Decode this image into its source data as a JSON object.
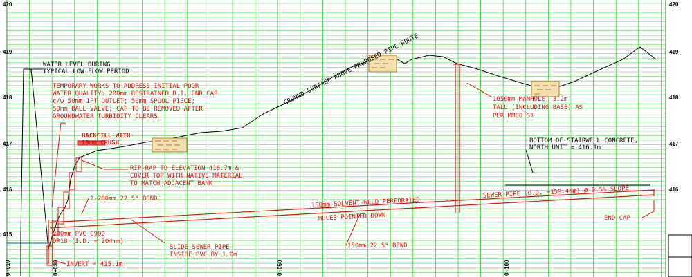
{
  "drawing": {
    "type": "pipe-profile",
    "colors": {
      "grid": "#33dd33",
      "gridMinor": "#7fe87f",
      "annotation": "#e01010",
      "linework": "#000000",
      "background": "#ffffff",
      "water": "#2040c0"
    },
    "elevation_labels": [
      "420",
      "419",
      "418",
      "417",
      "416",
      "415"
    ],
    "station_labels": [
      "0+010",
      "0+030",
      "0+050",
      "0+100"
    ],
    "notes": {
      "water_level": [
        "WATER LEVEL DURING",
        "TYPICAL LOW FLOW PERIOD"
      ],
      "temporary_works": [
        "TEMPORARY WORKS TO ADDRESS INITIAL POOR",
        "WATER QUALITY: 200mm RESTRAINED D.I. END CAP",
        "c/w 50mm IPT OUTLET; 50mm SPOOL PIECE;",
        "50mm BALL VALVE; CAP TO BE REMOVED AFTER",
        "GROUNDWATER TURBIDITY CLEARS"
      ],
      "backfill": [
        "BACKFILL WITH",
        "19mm CRUSH"
      ],
      "rip_rap": [
        "RIP-RAP TO ELEVATION 416.7m &",
        "COVER TOP WITH NATIVE MATERIAL",
        "TO MATCH ADJACENT BANK"
      ],
      "bend_200": "2-200mm 22.5° BEND",
      "pvc": [
        "200mm PVC C900",
        "DR18 (I.D. = 204mm)"
      ],
      "slide": [
        "SLIDE SEWER PIPE",
        "INSIDE PVC BY 1.0m"
      ],
      "invert": "INVERT = 415.1m",
      "bend_150": "150mm 22.5° BEND",
      "perforated": "150mm SOLVENT-WELD PERFORATED",
      "holes": "HOLES POINTED DOWN",
      "sewer_pipe": "SEWER PIPE (O.D. =159.4mm) @ 0.5% SLOPE",
      "end_cap": "END CAP",
      "manhole": [
        "1050mm MANHOLE, 3.2m",
        "TALL (INCLUDING BASE) AS",
        "PER MMCD S1"
      ],
      "stairwell": [
        "BOTTOM OF STAIRWELL CONCRETE,",
        "NORTH UNIT = 416.1m"
      ],
      "ground_surface": "GROUND SURFACE ABOVE PROPOSED PIPE ROUTE"
    }
  }
}
